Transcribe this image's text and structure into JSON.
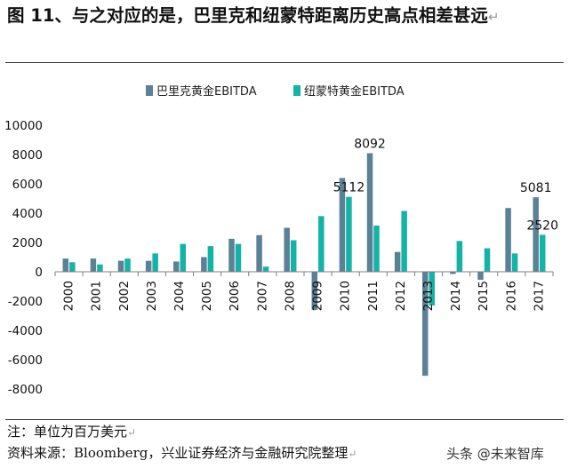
{
  "figure": {
    "title": "图 11、与之对应的是，巴里克和纽蒙特距离历史高点相差甚远",
    "note": "注：单位为百万美元",
    "source": "资料来源：Bloomberg，兴业证券经济与金融研究院整理",
    "watermark": "头条 @未来智库",
    "para_mark": "↵"
  },
  "colors": {
    "series1": "#5B8196",
    "series2": "#14B3A8",
    "axis": "#7F7F7F",
    "text": "#111111"
  },
  "chart_data": {
    "type": "bar",
    "title": "",
    "xlabel": "",
    "ylabel": "",
    "categories": [
      "2000",
      "2001",
      "2002",
      "2003",
      "2004",
      "2005",
      "2006",
      "2007",
      "2008",
      "2009",
      "2010",
      "2011",
      "2012",
      "2013",
      "2014",
      "2015",
      "2016",
      "2017"
    ],
    "series": [
      {
        "name": "巴里克黄金EBITDA",
        "values": [
          900,
          900,
          750,
          750,
          700,
          1000,
          2250,
          2500,
          3000,
          -2600,
          6400,
          8092,
          1350,
          -7100,
          -150,
          -550,
          4350,
          5081
        ]
      },
      {
        "name": "纽蒙特黄金EBITDA",
        "values": [
          650,
          500,
          900,
          1250,
          1900,
          1750,
          1900,
          350,
          2150,
          3800,
          5112,
          3150,
          4150,
          -2300,
          2100,
          1600,
          1250,
          2520
        ]
      }
    ],
    "ylim": [
      -8000,
      10000
    ],
    "yticks": [
      -8000,
      -6000,
      -4000,
      -2000,
      0,
      2000,
      4000,
      6000,
      8000,
      10000
    ],
    "data_labels": [
      {
        "series": 0,
        "category": "2011",
        "text": "8092"
      },
      {
        "series": 1,
        "category": "2010",
        "text": "5112"
      },
      {
        "series": 0,
        "category": "2017",
        "text": "5081"
      },
      {
        "series": 1,
        "category": "2017",
        "text": "2520"
      }
    ],
    "legend": "top-center",
    "grid": false
  }
}
